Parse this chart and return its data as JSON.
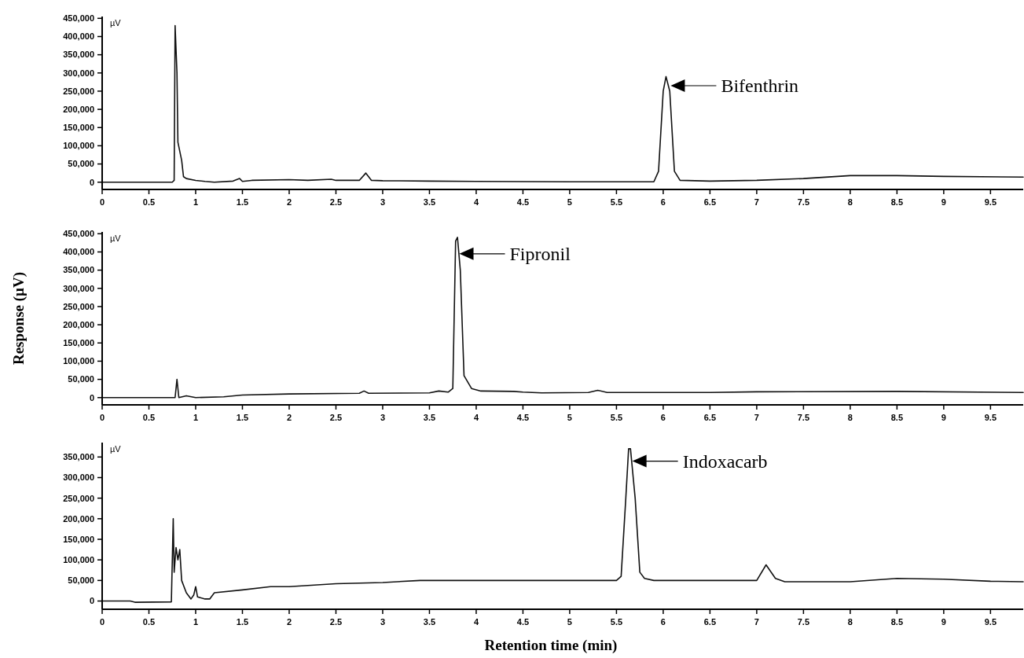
{
  "chart_data": [
    {
      "type": "line",
      "x": [
        0,
        0.75,
        0.77,
        0.78,
        0.8,
        0.81,
        0.85,
        0.87,
        0.9,
        1.0,
        1.1,
        1.2,
        1.4,
        1.47,
        1.5,
        1.6,
        2.0,
        2.2,
        2.45,
        2.5,
        2.75,
        2.82,
        2.88,
        3.0,
        3.5,
        4.0,
        5.0,
        5.9,
        5.95,
        6.0,
        6.03,
        6.07,
        6.12,
        6.18,
        6.5,
        7.0,
        7.5,
        8.0,
        8.5,
        9.0,
        9.85
      ],
      "series": [
        {
          "color": "#111111",
          "values": [
            0,
            0,
            5000,
            430000,
            300000,
            110000,
            60000,
            15000,
            10000,
            5000,
            2000,
            0,
            3000,
            10000,
            2000,
            5000,
            7000,
            5000,
            8000,
            5000,
            5000,
            25000,
            5000,
            4000,
            3000,
            2000,
            1000,
            1000,
            30000,
            250000,
            290000,
            250000,
            30000,
            5000,
            3000,
            5000,
            10000,
            18000,
            18000,
            16000,
            14000
          ]
        }
      ],
      "xlim": [
        0,
        9.85
      ],
      "xticks": [
        0,
        0.5,
        1,
        1.5,
        2,
        2.5,
        3,
        3.5,
        4,
        4.5,
        5,
        5.5,
        6,
        6.5,
        7,
        7.5,
        8,
        8.5,
        9,
        9.5
      ],
      "ylim": [
        -20000,
        455000
      ],
      "yticks": [
        {
          "value": 0,
          "label": "0"
        },
        {
          "value": 50000,
          "label": "50,000"
        },
        {
          "value": 100000,
          "label": "100,000"
        },
        {
          "value": 150000,
          "label": "150,000"
        },
        {
          "value": 200000,
          "label": "200,000"
        },
        {
          "value": 250000,
          "label": "250,000"
        },
        {
          "value": 300000,
          "label": "300,000"
        },
        {
          "value": 350000,
          "label": "350,000"
        },
        {
          "value": 400000,
          "label": "400,000"
        },
        {
          "value": 450000,
          "label": "450,000"
        }
      ],
      "annotations": [
        "µV",
        {
          "text": "Bifenthrin",
          "x": 6.08,
          "y": 265000
        }
      ]
    },
    {
      "type": "line",
      "x": [
        0,
        0.78,
        0.8,
        0.82,
        0.9,
        1.0,
        1.3,
        1.5,
        2.0,
        2.75,
        2.8,
        2.85,
        3.5,
        3.6,
        3.7,
        3.75,
        3.78,
        3.8,
        3.83,
        3.87,
        3.95,
        4.05,
        4.4,
        4.5,
        4.7,
        5.2,
        5.3,
        5.4,
        6.5,
        7.0,
        8.5,
        9.85
      ],
      "series": [
        {
          "color": "#111111",
          "values": [
            0,
            0,
            50000,
            0,
            5000,
            0,
            2000,
            7000,
            10000,
            12000,
            18000,
            12000,
            13000,
            18000,
            15000,
            25000,
            430000,
            440000,
            350000,
            60000,
            25000,
            18000,
            17000,
            15000,
            13000,
            14000,
            20000,
            14000,
            14000,
            16000,
            17000,
            14000
          ]
        }
      ],
      "xlim": [
        0,
        9.85
      ],
      "xticks": [
        0,
        0.5,
        1,
        1.5,
        2,
        2.5,
        3,
        3.5,
        4,
        4.5,
        5,
        5.5,
        6,
        6.5,
        7,
        7.5,
        8,
        8.5,
        9,
        9.5
      ],
      "ylim": [
        -20000,
        455000
      ],
      "yticks": [
        {
          "value": 0,
          "label": "0"
        },
        {
          "value": 50000,
          "label": "50,000"
        },
        {
          "value": 100000,
          "label": "100,000"
        },
        {
          "value": 150000,
          "label": "150,000"
        },
        {
          "value": 200000,
          "label": "200,000"
        },
        {
          "value": 250000,
          "label": "250,000"
        },
        {
          "value": 300000,
          "label": "300,000"
        },
        {
          "value": 350000,
          "label": "350,000"
        },
        {
          "value": 400000,
          "label": "400,000"
        },
        {
          "value": 450000,
          "label": "450,000"
        }
      ],
      "ylabel": "Response (µV)",
      "annotations": [
        "µV",
        {
          "text": "Fipronil",
          "x": 3.82,
          "y": 395000
        }
      ]
    },
    {
      "type": "line",
      "x": [
        0,
        0.3,
        0.35,
        0.74,
        0.76,
        0.77,
        0.79,
        0.81,
        0.83,
        0.85,
        0.9,
        0.95,
        0.98,
        1.0,
        1.02,
        1.1,
        1.15,
        1.2,
        1.5,
        1.8,
        2.0,
        2.5,
        3.0,
        3.4,
        4.0,
        5.0,
        5.5,
        5.55,
        5.6,
        5.63,
        5.65,
        5.7,
        5.75,
        5.8,
        5.9,
        6.5,
        7.0,
        7.1,
        7.2,
        7.3,
        8.0,
        8.5,
        9.0,
        9.5,
        9.85
      ],
      "series": [
        {
          "color": "#111111",
          "values": [
            0,
            0,
            -3000,
            -2000,
            200000,
            70000,
            130000,
            100000,
            125000,
            50000,
            20000,
            5000,
            15000,
            35000,
            10000,
            5000,
            5000,
            20000,
            27000,
            35000,
            35000,
            42000,
            45000,
            50000,
            50000,
            50000,
            50000,
            60000,
            250000,
            370000,
            370000,
            250000,
            70000,
            55000,
            50000,
            50000,
            50000,
            88000,
            55000,
            47000,
            47000,
            55000,
            53000,
            48000,
            47000
          ]
        }
      ],
      "xlim": [
        0,
        9.85
      ],
      "xticks": [
        0,
        0.5,
        1,
        1.5,
        2,
        2.5,
        3,
        3.5,
        4,
        4.5,
        5,
        5.5,
        6,
        6.5,
        7,
        7.5,
        8,
        8.5,
        9,
        9.5
      ],
      "ylim": [
        -20000,
        385000
      ],
      "yticks": [
        {
          "value": 0,
          "label": "0"
        },
        {
          "value": 50000,
          "label": "50,000"
        },
        {
          "value": 100000,
          "label": "100,000"
        },
        {
          "value": 150000,
          "label": "150,000"
        },
        {
          "value": 200000,
          "label": "200,000"
        },
        {
          "value": 250000,
          "label": "250,000"
        },
        {
          "value": 300000,
          "label": "300,000"
        },
        {
          "value": 350000,
          "label": "350,000"
        }
      ],
      "xlabel": "Retention time (min)",
      "annotations": [
        "µV",
        {
          "text": "Indoxacarb",
          "x": 5.67,
          "y": 340000
        }
      ]
    }
  ]
}
